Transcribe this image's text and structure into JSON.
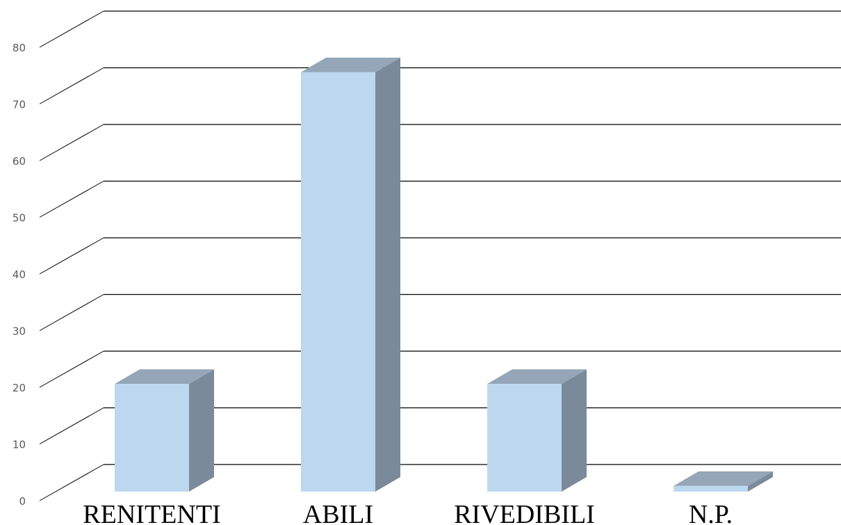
{
  "chart_data": {
    "type": "bar",
    "title": "",
    "xlabel": "",
    "ylabel": "",
    "categories": [
      "RENITENTI",
      "ABILI",
      "RIVEDIBILI",
      "N.P."
    ],
    "values": [
      19,
      74,
      19,
      1
    ],
    "ylim": [
      0,
      80
    ],
    "yticks": [
      0,
      10,
      20,
      30,
      40,
      50,
      60,
      70,
      80
    ],
    "yticklabels": [
      "0",
      "10",
      "20",
      "30",
      "40",
      "50",
      "60",
      "70",
      "80"
    ],
    "grid": true,
    "legend": "none",
    "style": "3d-column",
    "colors": {
      "front": "#bdd7ee",
      "side": "#7a8a9a",
      "top": "#94a6b8",
      "grid": "#000000",
      "tick_text": "#595959"
    }
  }
}
